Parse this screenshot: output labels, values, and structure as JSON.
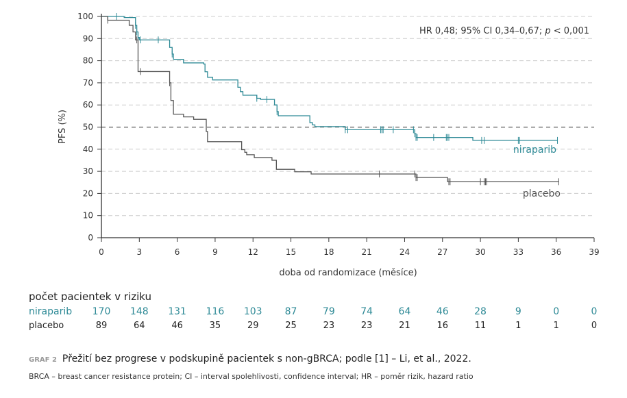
{
  "chart_data": {
    "type": "line",
    "subtype": "kaplan-meier",
    "ylabel": "PFS (%)",
    "xlabel": "doba od randomizace (měsíce)",
    "xlim": [
      0,
      39
    ],
    "ylim": [
      0,
      100
    ],
    "xticks": [
      0,
      3,
      6,
      9,
      12,
      15,
      18,
      21,
      24,
      27,
      30,
      33,
      36,
      39
    ],
    "yticks": [
      0,
      10,
      20,
      30,
      40,
      50,
      60,
      70,
      80,
      90,
      100
    ],
    "grid": "horizontal dashed",
    "reference_line": 50,
    "annotation": {
      "text_before": "HR 0,48; 95% CI 0,34–0,67; ",
      "p": "p",
      "text_after": " < 0,001"
    },
    "series": [
      {
        "name": "niraparib",
        "color": "#2e8a96",
        "steps": [
          [
            0,
            100
          ],
          [
            1.8,
            99.5
          ],
          [
            2.7,
            96
          ],
          [
            2.8,
            93
          ],
          [
            2.9,
            90.5
          ],
          [
            3.0,
            89.4
          ],
          [
            5.4,
            86
          ],
          [
            5.6,
            83
          ],
          [
            5.7,
            80.6
          ],
          [
            6.5,
            79
          ],
          [
            8.1,
            78.5
          ],
          [
            8.2,
            75
          ],
          [
            8.4,
            72.5
          ],
          [
            8.8,
            71.3
          ],
          [
            10.8,
            68
          ],
          [
            11.0,
            66
          ],
          [
            11.2,
            64.4
          ],
          [
            12.3,
            63
          ],
          [
            12.6,
            62.5
          ],
          [
            13.7,
            60
          ],
          [
            13.9,
            57
          ],
          [
            14.0,
            55.1
          ],
          [
            16.5,
            52
          ],
          [
            16.7,
            51
          ],
          [
            16.9,
            50.2
          ],
          [
            19.3,
            48.8
          ],
          [
            24.8,
            47
          ],
          [
            24.9,
            45.3
          ],
          [
            29.4,
            44.0
          ],
          [
            36.1,
            44.0
          ]
        ],
        "censored": [
          1.2,
          2.7,
          2.8,
          2.9,
          3.1,
          4.5,
          5.6,
          12.3,
          13.1,
          13.9,
          19.3,
          19.5,
          22.1,
          22.2,
          22.3,
          23.1,
          24.7,
          24.8,
          24.9,
          25.0,
          26.3,
          27.3,
          27.4,
          27.5,
          30.1,
          30.3,
          33.0,
          33.1,
          36.1
        ]
      },
      {
        "name": "placebo",
        "color": "#555555",
        "steps": [
          [
            0,
            100
          ],
          [
            0.5,
            98.3
          ],
          [
            2.2,
            96
          ],
          [
            2.5,
            93
          ],
          [
            2.7,
            89.4
          ],
          [
            2.9,
            75.1
          ],
          [
            5.4,
            70
          ],
          [
            5.5,
            62
          ],
          [
            5.7,
            55.8
          ],
          [
            6.5,
            54.6
          ],
          [
            7.3,
            53.5
          ],
          [
            8.3,
            48
          ],
          [
            8.4,
            43.4
          ],
          [
            11.1,
            39.8
          ],
          [
            11.35,
            38.6
          ],
          [
            11.5,
            37.5
          ],
          [
            12.1,
            36.2
          ],
          [
            13.5,
            35
          ],
          [
            13.85,
            30.9
          ],
          [
            15.3,
            29.8
          ],
          [
            16.6,
            28.8
          ],
          [
            24.9,
            27.2
          ],
          [
            27.4,
            25.3
          ],
          [
            36.2,
            25.3
          ]
        ],
        "censored": [
          0.5,
          2.8,
          3.1,
          5.4,
          22.0,
          24.8,
          24.9,
          25.0,
          27.5,
          27.6,
          30.0,
          30.3,
          30.4,
          30.5,
          36.2
        ]
      }
    ]
  },
  "risk_table": {
    "title": "počet pacientek v riziku",
    "rows": [
      {
        "label": "niraparib",
        "values": [
          "170",
          "148",
          "131",
          "116",
          "103",
          "87",
          "79",
          "74",
          "64",
          "46",
          "28",
          "9",
          "0",
          "0"
        ]
      },
      {
        "label": "placebo",
        "values": [
          "89",
          "64",
          "46",
          "35",
          "29",
          "25",
          "23",
          "23",
          "21",
          "16",
          "11",
          "1",
          "1",
          "0"
        ]
      }
    ]
  },
  "caption": {
    "tag": "GRAF 2",
    "text": "Přežití bez progrese v podskupině pacientek s non-gBRCA; podle [1] – Li, et al., 2022."
  },
  "footnote": "BRCA – breast cancer resistance protein; CI – interval spolehlivosti, confidence interval; HR – poměr rizik, hazard ratio"
}
